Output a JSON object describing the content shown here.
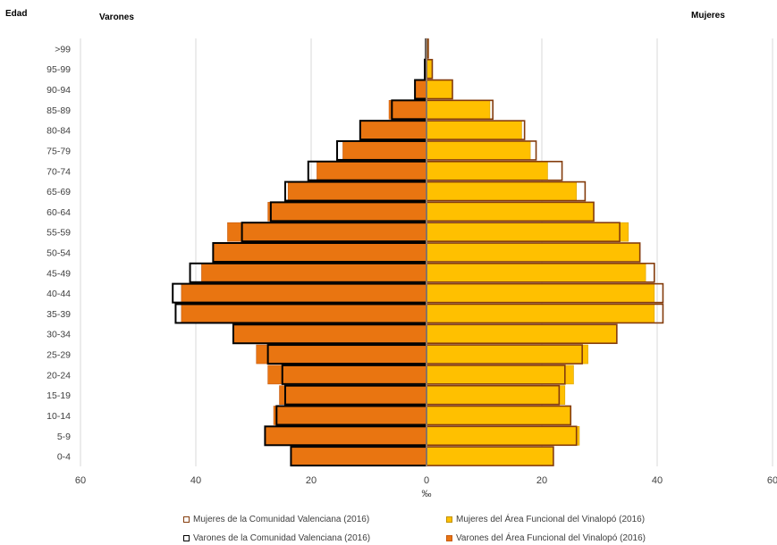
{
  "labels": {
    "age_axis": "Edad",
    "men": "Varones",
    "women": "Mujeres",
    "x_unit": "‰"
  },
  "legend": [
    {
      "label": "Mujeres de la Comunidad Valenciana (2016)",
      "fill": "#ffffff",
      "stroke": "#843c0c"
    },
    {
      "label": "Mujeres del Área Funcional del Vinalopó (2016)",
      "fill": "#ffc000",
      "stroke": "#bf9000"
    },
    {
      "label": "Varones de la Comunidad Valenciana (2016)",
      "fill": "#ffffff",
      "stroke": "#000000"
    },
    {
      "label": "Varones del Área Funcional del Vinalopó (2016)",
      "fill": "#e97511",
      "stroke": "#c55a11"
    }
  ],
  "colors": {
    "men_area_fill": "#e97511",
    "women_area_fill": "#ffc000",
    "men_cv_outline": "#000000",
    "women_cv_outline": "#843c0c",
    "gridline": "#d9d9d9"
  },
  "chart_data": {
    "type": "bar",
    "orientation": "horizontal-pyramid",
    "categories": [
      "0-4",
      "5-9",
      "10-14",
      "15-19",
      "20-24",
      "25-29",
      "30-34",
      "35-39",
      "40-44",
      "45-49",
      "50-54",
      "55-59",
      "60-64",
      "65-69",
      "70-74",
      "75-79",
      "80-84",
      "85-89",
      "90-94",
      "95-99",
      ">99"
    ],
    "series": [
      {
        "name": "Varones del Área Funcional del Vinalopó (2016)",
        "side": "left",
        "values": [
          23.5,
          28.0,
          26.5,
          25.5,
          27.5,
          29.5,
          33.5,
          42.5,
          42.5,
          39.0,
          37.0,
          34.5,
          27.5,
          24.0,
          19.0,
          14.5,
          11.5,
          6.5,
          2.0,
          0.3,
          0.1
        ]
      },
      {
        "name": "Varones de la Comunidad Valenciana (2016)",
        "side": "left",
        "values": [
          23.5,
          28.0,
          26.0,
          24.5,
          25.0,
          27.5,
          33.5,
          43.5,
          44.0,
          41.0,
          37.0,
          32.0,
          27.0,
          24.5,
          20.5,
          15.5,
          11.5,
          6.0,
          2.0,
          0.3,
          0.1
        ]
      },
      {
        "name": "Mujeres del Área Funcional del Vinalopó (2016)",
        "side": "right",
        "values": [
          22.0,
          26.5,
          25.0,
          24.0,
          25.5,
          28.0,
          33.0,
          39.5,
          39.5,
          38.0,
          37.0,
          35.0,
          29.0,
          26.0,
          21.0,
          18.0,
          16.5,
          11.0,
          4.5,
          1.0,
          0.3
        ]
      },
      {
        "name": "Mujeres de la Comunidad Valenciana (2016)",
        "side": "right",
        "values": [
          22.0,
          26.0,
          25.0,
          23.0,
          24.0,
          27.0,
          33.0,
          41.0,
          41.0,
          39.5,
          37.0,
          33.5,
          29.0,
          27.5,
          23.5,
          19.0,
          17.0,
          11.5,
          4.5,
          1.0,
          0.3
        ]
      }
    ],
    "xlabel": "‰",
    "ylabel": "Edad",
    "xlim": [
      -60,
      60
    ],
    "x_ticks": [
      60,
      40,
      20,
      0,
      20,
      40,
      60
    ],
    "grid": "vertical",
    "legend_position": "bottom"
  }
}
